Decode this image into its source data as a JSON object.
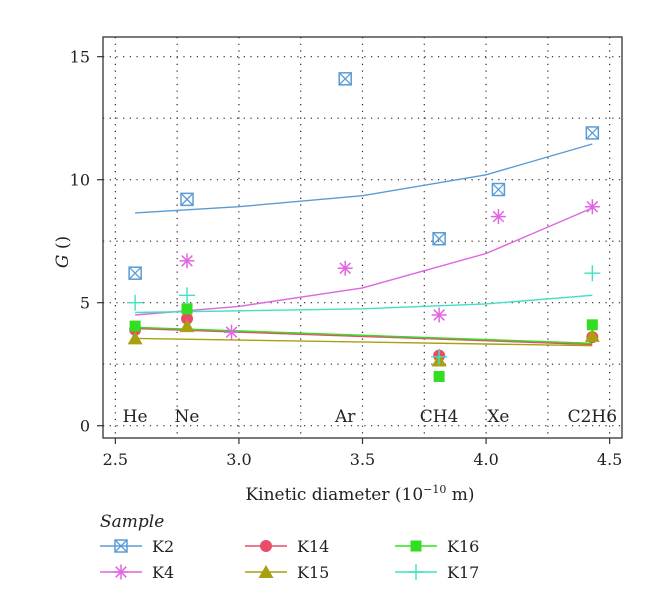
{
  "chart_data": {
    "type": "scatter",
    "title": "",
    "xlabel_main": "Kinetic diameter (10",
    "xlabel_exp": "−10",
    "xlabel_tail": " m)",
    "ylabel_italic": "G",
    "ylabel_tail": " ()",
    "xlim": [
      2.45,
      4.55
    ],
    "ylim": [
      -0.5,
      15.8
    ],
    "xticks": [
      "2.5",
      "3.0",
      "3.5",
      "4.0",
      "4.5"
    ],
    "xtick_values": [
      2.5,
      3.0,
      3.5,
      4.0,
      4.5
    ],
    "yticks": [
      "0",
      "5",
      "10",
      "15"
    ],
    "ytick_values": [
      0,
      5,
      10,
      15
    ],
    "grid": true,
    "gas_labels": [
      {
        "text": "He",
        "x": 2.58
      },
      {
        "text": "Ne",
        "x": 2.79
      },
      {
        "text": "Ar",
        "x": 3.43
      },
      {
        "text": "CH4",
        "x": 3.81
      },
      {
        "text": "Xe",
        "x": 4.05
      },
      {
        "text": "C2H6",
        "x": 4.43
      }
    ],
    "legend_title": "Sample",
    "legend_placement": "bottom",
    "series": [
      {
        "name": "K2",
        "color": "#5b9bd5",
        "marker": "square-x",
        "points": [
          [
            2.58,
            6.2
          ],
          [
            2.79,
            9.2
          ],
          [
            3.43,
            14.1
          ],
          [
            3.81,
            7.6
          ],
          [
            4.05,
            9.6
          ],
          [
            4.43,
            11.9
          ]
        ],
        "trend": [
          [
            2.58,
            8.65
          ],
          [
            3.0,
            8.9
          ],
          [
            3.5,
            9.35
          ],
          [
            4.0,
            10.2
          ],
          [
            4.43,
            11.45
          ]
        ]
      },
      {
        "name": "K4",
        "color": "#e066e0",
        "marker": "asterisk",
        "points": [
          [
            2.79,
            6.7
          ],
          [
            2.97,
            3.8
          ],
          [
            3.43,
            6.4
          ],
          [
            3.81,
            4.5
          ],
          [
            4.05,
            8.5
          ],
          [
            4.43,
            8.9
          ]
        ],
        "trend": [
          [
            2.58,
            4.5
          ],
          [
            3.0,
            4.85
          ],
          [
            3.5,
            5.6
          ],
          [
            4.0,
            7.0
          ],
          [
            4.43,
            8.85
          ]
        ]
      },
      {
        "name": "K14",
        "color": "#e84c6a",
        "marker": "circle",
        "points": [
          [
            2.58,
            3.9
          ],
          [
            2.79,
            4.35
          ],
          [
            3.81,
            2.85
          ],
          [
            4.43,
            3.6
          ]
        ],
        "trend": [
          [
            2.58,
            3.95
          ],
          [
            4.43,
            3.3
          ]
        ]
      },
      {
        "name": "K15",
        "color": "#a8a010",
        "marker": "triangle",
        "points": [
          [
            2.58,
            3.55
          ],
          [
            2.79,
            4.05
          ],
          [
            3.81,
            2.65
          ],
          [
            4.43,
            3.65
          ]
        ],
        "trend": [
          [
            2.58,
            3.55
          ],
          [
            4.43,
            3.25
          ]
        ]
      },
      {
        "name": "K16",
        "color": "#33dd22",
        "marker": "square",
        "points": [
          [
            2.58,
            4.05
          ],
          [
            2.79,
            4.75
          ],
          [
            3.81,
            2.0
          ],
          [
            4.43,
            4.1
          ]
        ],
        "trend": [
          [
            2.58,
            4.0
          ],
          [
            4.43,
            3.35
          ]
        ]
      },
      {
        "name": "K17",
        "color": "#40e0c0",
        "marker": "plus",
        "points": [
          [
            2.58,
            5.0
          ],
          [
            2.79,
            5.3
          ],
          [
            3.81,
            2.8
          ],
          [
            4.43,
            6.2
          ]
        ],
        "trend": [
          [
            2.58,
            4.6
          ],
          [
            3.5,
            4.75
          ],
          [
            4.0,
            4.95
          ],
          [
            4.43,
            5.3
          ]
        ]
      }
    ]
  }
}
